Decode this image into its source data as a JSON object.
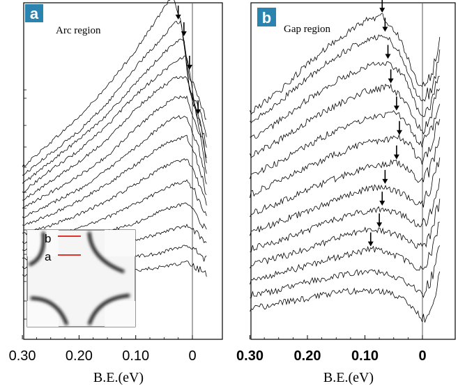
{
  "figure": {
    "panels": [
      {
        "id": "a",
        "badge": "a",
        "label": "Arc region",
        "inset": {
          "cut_labels": [
            "b",
            "a"
          ]
        }
      },
      {
        "id": "b",
        "badge": "b",
        "label": "Gap region"
      }
    ]
  },
  "chart_data": [
    {
      "type": "line",
      "panel": "a",
      "title": "Arc region",
      "xlabel": "B.E.(eV)",
      "ylabel": "",
      "x_reversed": true,
      "xlim": [
        0.3,
        -0.04
      ],
      "xticks": [
        0.3,
        0.2,
        0.1,
        0
      ],
      "xtick_labels": [
        "0.30",
        "0.20",
        "0.10",
        "0"
      ],
      "y_ticks_shown": false,
      "reference_line_x": 0,
      "n_curves": 14,
      "peak_markers_be_eV": [
        0.035,
        0.025,
        0.015,
        0.005,
        -0.01
      ],
      "series": [
        {
          "x": [
            0.3,
            0.25,
            0.2,
            0.15,
            0.1,
            0.06,
            0.035,
            0.02,
            0.005,
            -0.01,
            -0.025
          ],
          "values": [
            0.58,
            0.67,
            0.76,
            0.87,
            1.0,
            1.12,
            1.2,
            1.1,
            0.9,
            0.84,
            0.74
          ]
        },
        {
          "x": [
            0.3,
            0.25,
            0.2,
            0.15,
            0.1,
            0.06,
            0.03,
            0.02,
            0.005,
            -0.01,
            -0.025
          ],
          "values": [
            0.55,
            0.63,
            0.71,
            0.81,
            0.94,
            1.03,
            1.1,
            1.1,
            0.86,
            0.8,
            0.7
          ]
        },
        {
          "x": [
            0.3,
            0.25,
            0.2,
            0.15,
            0.1,
            0.06,
            0.03,
            0.015,
            0.005,
            -0.01,
            -0.025
          ],
          "values": [
            0.52,
            0.6,
            0.68,
            0.77,
            0.88,
            0.97,
            1.03,
            1.04,
            0.85,
            0.76,
            0.66
          ]
        },
        {
          "x": [
            0.3,
            0.25,
            0.2,
            0.15,
            0.1,
            0.06,
            0.03,
            0.01,
            0.0,
            -0.01,
            -0.025
          ],
          "values": [
            0.49,
            0.57,
            0.64,
            0.73,
            0.84,
            0.91,
            0.96,
            0.98,
            0.86,
            0.74,
            0.62
          ]
        },
        {
          "x": [
            0.3,
            0.25,
            0.2,
            0.15,
            0.1,
            0.06,
            0.03,
            0.01,
            -0.005,
            -0.015,
            -0.025
          ],
          "values": [
            0.46,
            0.53,
            0.6,
            0.68,
            0.79,
            0.86,
            0.9,
            0.9,
            0.8,
            0.72,
            0.6
          ]
        },
        {
          "x": [
            0.3,
            0.25,
            0.2,
            0.15,
            0.1,
            0.06,
            0.03,
            0.01,
            -0.005,
            -0.015,
            -0.025
          ],
          "values": [
            0.43,
            0.49,
            0.55,
            0.62,
            0.72,
            0.79,
            0.83,
            0.83,
            0.74,
            0.68,
            0.56
          ]
        },
        {
          "x": [
            0.3,
            0.25,
            0.2,
            0.15,
            0.1,
            0.06,
            0.03,
            0.01,
            -0.005,
            -0.015,
            -0.025
          ],
          "values": [
            0.4,
            0.45,
            0.5,
            0.57,
            0.65,
            0.72,
            0.76,
            0.76,
            0.68,
            0.62,
            0.52
          ]
        },
        {
          "x": [
            0.3,
            0.25,
            0.2,
            0.15,
            0.1,
            0.06,
            0.03,
            0.01,
            -0.005,
            -0.015,
            -0.025
          ],
          "values": [
            0.37,
            0.41,
            0.46,
            0.52,
            0.59,
            0.65,
            0.68,
            0.69,
            0.62,
            0.56,
            0.48
          ]
        },
        {
          "x": [
            0.3,
            0.25,
            0.2,
            0.15,
            0.1,
            0.06,
            0.03,
            0.01,
            -0.005,
            -0.015,
            -0.025
          ],
          "values": [
            0.34,
            0.37,
            0.41,
            0.46,
            0.52,
            0.57,
            0.6,
            0.61,
            0.56,
            0.5,
            0.44
          ]
        },
        {
          "x": [
            0.3,
            0.25,
            0.2,
            0.15,
            0.1,
            0.06,
            0.03,
            0.01,
            -0.005,
            -0.015,
            -0.025
          ],
          "values": [
            0.31,
            0.33,
            0.36,
            0.4,
            0.45,
            0.49,
            0.52,
            0.53,
            0.49,
            0.44,
            0.4
          ]
        },
        {
          "x": [
            0.3,
            0.25,
            0.2,
            0.15,
            0.1,
            0.06,
            0.03,
            0.01,
            -0.005,
            -0.015,
            -0.025
          ],
          "values": [
            0.28,
            0.3,
            0.32,
            0.35,
            0.38,
            0.42,
            0.44,
            0.45,
            0.42,
            0.38,
            0.35
          ]
        },
        {
          "x": [
            0.3,
            0.25,
            0.2,
            0.15,
            0.1,
            0.06,
            0.03,
            0.01,
            -0.005,
            -0.015,
            -0.025
          ],
          "values": [
            0.25,
            0.26,
            0.28,
            0.3,
            0.32,
            0.34,
            0.36,
            0.37,
            0.35,
            0.32,
            0.3
          ]
        },
        {
          "x": [
            0.3,
            0.25,
            0.2,
            0.15,
            0.1,
            0.06,
            0.03,
            0.01,
            -0.005,
            -0.015,
            -0.025
          ],
          "values": [
            0.22,
            0.23,
            0.24,
            0.25,
            0.26,
            0.27,
            0.29,
            0.3,
            0.28,
            0.26,
            0.25
          ]
        },
        {
          "x": [
            0.3,
            0.25,
            0.2,
            0.15,
            0.1,
            0.06,
            0.03,
            0.01,
            -0.005,
            -0.015,
            -0.025
          ],
          "values": [
            0.19,
            0.19,
            0.2,
            0.2,
            0.21,
            0.22,
            0.23,
            0.24,
            0.22,
            0.21,
            0.2
          ]
        }
      ]
    },
    {
      "type": "line",
      "panel": "b",
      "title": "Gap region",
      "xlabel": "B.E.(eV)",
      "ylabel": "",
      "x_reversed": true,
      "xlim": [
        0.3,
        -0.04
      ],
      "xticks": [
        0.3,
        0.2,
        0.1,
        0
      ],
      "xtick_labels": [
        "0.30",
        "0.20",
        "0.10",
        "0"
      ],
      "y_ticks_shown": false,
      "reference_line_x": 0,
      "n_curves": 13,
      "peak_markers_be_eV": [
        0.07,
        0.065,
        0.06,
        0.055,
        0.045,
        0.04,
        0.045,
        0.065,
        0.07,
        0.075,
        0.09
      ],
      "series": [
        {
          "x": [
            0.3,
            0.25,
            0.2,
            0.15,
            0.1,
            0.07,
            0.04,
            0.01,
            0.0,
            -0.015,
            -0.03
          ],
          "values": [
            0.86,
            0.94,
            1.04,
            1.13,
            1.2,
            1.22,
            1.14,
            0.98,
            0.95,
            1.0,
            1.12
          ]
        },
        {
          "x": [
            0.3,
            0.25,
            0.2,
            0.15,
            0.1,
            0.065,
            0.04,
            0.01,
            0.0,
            -0.015,
            -0.03
          ],
          "values": [
            0.82,
            0.9,
            0.99,
            1.07,
            1.13,
            1.15,
            1.08,
            0.93,
            0.9,
            0.95,
            1.07
          ]
        },
        {
          "x": [
            0.3,
            0.25,
            0.2,
            0.15,
            0.1,
            0.06,
            0.03,
            0.01,
            0.0,
            -0.015,
            -0.03
          ],
          "values": [
            0.76,
            0.83,
            0.91,
            0.98,
            1.03,
            1.05,
            0.99,
            0.88,
            0.85,
            0.9,
            1.02
          ]
        },
        {
          "x": [
            0.3,
            0.25,
            0.2,
            0.15,
            0.1,
            0.055,
            0.03,
            0.01,
            0.0,
            -0.015,
            -0.03
          ],
          "values": [
            0.7,
            0.76,
            0.83,
            0.89,
            0.94,
            0.96,
            0.9,
            0.82,
            0.8,
            0.85,
            0.97
          ]
        },
        {
          "x": [
            0.3,
            0.25,
            0.2,
            0.15,
            0.1,
            0.045,
            0.025,
            0.01,
            0.0,
            -0.015,
            -0.03
          ],
          "values": [
            0.63,
            0.68,
            0.74,
            0.8,
            0.84,
            0.86,
            0.82,
            0.76,
            0.74,
            0.79,
            0.91
          ]
        },
        {
          "x": [
            0.3,
            0.25,
            0.2,
            0.15,
            0.1,
            0.04,
            0.02,
            0.01,
            0.0,
            -0.015,
            -0.03
          ],
          "values": [
            0.56,
            0.61,
            0.66,
            0.71,
            0.75,
            0.77,
            0.74,
            0.7,
            0.68,
            0.73,
            0.85
          ]
        },
        {
          "x": [
            0.3,
            0.25,
            0.2,
            0.15,
            0.1,
            0.045,
            0.02,
            0.01,
            0.0,
            -0.015,
            -0.03
          ],
          "values": [
            0.49,
            0.53,
            0.58,
            0.62,
            0.66,
            0.68,
            0.65,
            0.62,
            0.61,
            0.66,
            0.78
          ]
        },
        {
          "x": [
            0.3,
            0.25,
            0.2,
            0.15,
            0.1,
            0.065,
            0.03,
            0.01,
            0.0,
            -0.015,
            -0.03
          ],
          "values": [
            0.42,
            0.46,
            0.5,
            0.54,
            0.58,
            0.59,
            0.56,
            0.53,
            0.53,
            0.58,
            0.7
          ]
        },
        {
          "x": [
            0.3,
            0.25,
            0.2,
            0.15,
            0.1,
            0.07,
            0.03,
            0.01,
            0.0,
            -0.015,
            -0.03
          ],
          "values": [
            0.36,
            0.39,
            0.43,
            0.47,
            0.5,
            0.51,
            0.48,
            0.45,
            0.45,
            0.5,
            0.62
          ]
        },
        {
          "x": [
            0.3,
            0.25,
            0.2,
            0.15,
            0.1,
            0.075,
            0.03,
            0.01,
            0.0,
            -0.015,
            -0.03
          ],
          "values": [
            0.3,
            0.33,
            0.36,
            0.4,
            0.43,
            0.43,
            0.4,
            0.37,
            0.37,
            0.42,
            0.54
          ]
        },
        {
          "x": [
            0.3,
            0.25,
            0.2,
            0.15,
            0.09,
            0.06,
            0.03,
            0.01,
            0.0,
            -0.015,
            -0.03
          ],
          "values": [
            0.24,
            0.27,
            0.3,
            0.33,
            0.36,
            0.35,
            0.32,
            0.29,
            0.29,
            0.34,
            0.45
          ]
        },
        {
          "x": [
            0.3,
            0.25,
            0.2,
            0.15,
            0.1,
            0.06,
            0.03,
            0.01,
            0.0,
            -0.015,
            -0.03
          ],
          "values": [
            0.19,
            0.21,
            0.24,
            0.26,
            0.28,
            0.27,
            0.24,
            0.21,
            0.2,
            0.25,
            0.36
          ]
        },
        {
          "x": [
            0.3,
            0.25,
            0.2,
            0.15,
            0.1,
            0.06,
            0.03,
            0.01,
            0.0,
            -0.015,
            -0.03
          ],
          "values": [
            0.14,
            0.16,
            0.18,
            0.2,
            0.21,
            0.2,
            0.17,
            0.13,
            0.1,
            0.14,
            0.26
          ]
        }
      ]
    }
  ],
  "style": {
    "badge_color": "#2b83b0",
    "badge_text_color": "#ffffff",
    "line_color": "#000000",
    "cut_line_color": "#e0332b"
  }
}
